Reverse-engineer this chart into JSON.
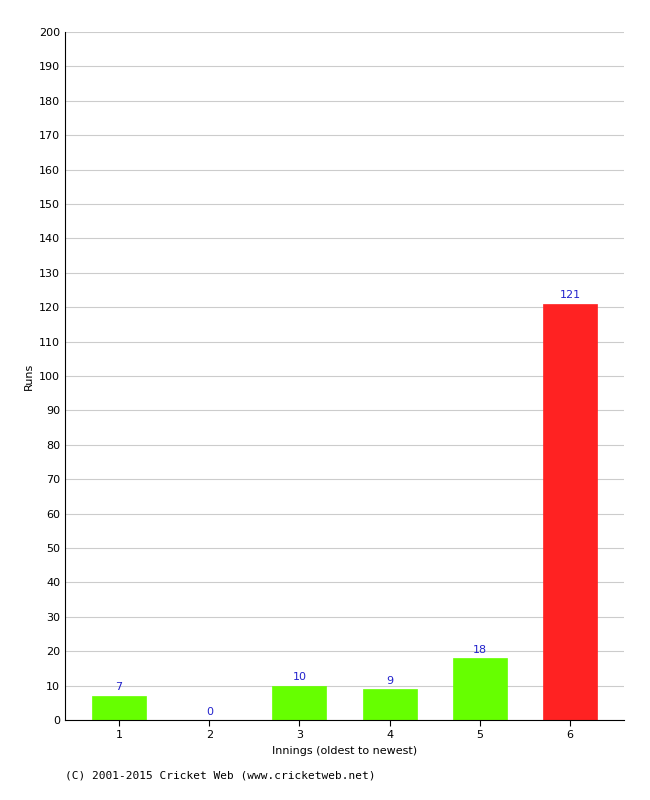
{
  "categories": [
    "1",
    "2",
    "3",
    "4",
    "5",
    "6"
  ],
  "values": [
    7,
    0,
    10,
    9,
    18,
    121
  ],
  "bar_colors": [
    "#66ff00",
    "#66ff00",
    "#66ff00",
    "#66ff00",
    "#66ff00",
    "#ff2222"
  ],
  "xlabel": "Innings (oldest to newest)",
  "ylabel": "Runs",
  "ylim": [
    0,
    200
  ],
  "yticks": [
    0,
    10,
    20,
    30,
    40,
    50,
    60,
    70,
    80,
    90,
    100,
    110,
    120,
    130,
    140,
    150,
    160,
    170,
    180,
    190,
    200
  ],
  "label_color": "#2222cc",
  "label_fontsize": 8,
  "axis_label_fontsize": 8,
  "tick_fontsize": 8,
  "footer_text": "(C) 2001-2015 Cricket Web (www.cricketweb.net)",
  "footer_fontsize": 8,
  "background_color": "#ffffff",
  "grid_color": "#cccccc",
  "bar_width": 0.6
}
